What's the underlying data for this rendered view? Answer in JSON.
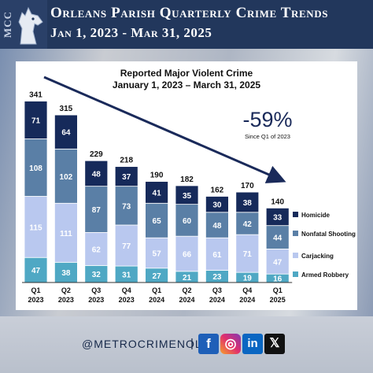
{
  "header": {
    "logo_text": "MCC",
    "title": "Orleans Parish Quarterly Crime Trends",
    "subtitle": "Jan 1, 2023 - Mar 31, 2025"
  },
  "footer": {
    "handle": "@METROCRIMENOLA",
    "separator": "|",
    "social": {
      "facebook": "f",
      "instagram": "◎",
      "linkedin": "in",
      "x": "𝕏"
    }
  },
  "chart_data": {
    "type": "bar",
    "stacked": true,
    "title": "Reported Major Violent Crime",
    "subtitle": "January 1, 2023 – March 31, 2025",
    "categories": [
      [
        "Q1",
        "2023"
      ],
      [
        "Q2",
        "2023"
      ],
      [
        "Q3",
        "2023"
      ],
      [
        "Q4",
        "2023"
      ],
      [
        "Q1",
        "2024"
      ],
      [
        "Q2",
        "2024"
      ],
      [
        "Q3",
        "2024"
      ],
      [
        "Q4",
        "2024"
      ],
      [
        "Q1",
        "2025"
      ]
    ],
    "totals": [
      341,
      315,
      229,
      218,
      190,
      182,
      162,
      170,
      140
    ],
    "series": [
      {
        "name": "Armed Robbery",
        "color": "#4fa8c4",
        "values": [
          47,
          38,
          32,
          31,
          27,
          21,
          23,
          19,
          16
        ]
      },
      {
        "name": "Carjacking",
        "color": "#b9c8ef",
        "values": [
          115,
          111,
          62,
          77,
          57,
          66,
          61,
          71,
          47
        ]
      },
      {
        "name": "Nonfatal Shooting",
        "color": "#5a7fa6",
        "values": [
          108,
          102,
          87,
          73,
          65,
          60,
          48,
          42,
          44
        ]
      },
      {
        "name": "Homicide",
        "color": "#162a5a",
        "values": [
          71,
          64,
          48,
          37,
          41,
          35,
          30,
          38,
          33
        ]
      }
    ],
    "legend_order": [
      "Homicide",
      "Nonfatal Shooting",
      "Carjacking",
      "Armed Robbery"
    ],
    "legend_position": "right",
    "ylim": [
      0,
      360
    ],
    "annotation": {
      "value": "-59%",
      "caption": "Since Q1 of 2023"
    },
    "trend_arrow": true,
    "grid": false
  }
}
